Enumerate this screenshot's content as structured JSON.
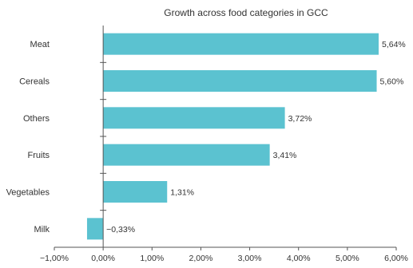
{
  "chart_data": {
    "type": "bar",
    "orientation": "horizontal",
    "title": "Growth across food categories in GCC",
    "categories": [
      "Meat",
      "Cereals",
      "Others",
      "Fruits",
      "Vegetables",
      "Milk"
    ],
    "values": [
      5.64,
      5.6,
      3.72,
      3.41,
      1.31,
      -0.33
    ],
    "value_labels": [
      "5,64%",
      "5,60%",
      "3,72%",
      "3,41%",
      "1,31%",
      "−0,33%"
    ],
    "xlim": [
      -1.0,
      6.0
    ],
    "xticks": [
      -1,
      0,
      1,
      2,
      3,
      4,
      5,
      6
    ],
    "xtick_labels": [
      "−1,00%",
      "0,00%",
      "1,00%",
      "2,00%",
      "3,00%",
      "4,00%",
      "5,00%",
      "6,00%"
    ],
    "xlabel": "",
    "ylabel": "",
    "grid": false,
    "legend": "none",
    "bar_color": "#5bc2d0",
    "axis_color": "#555555"
  }
}
